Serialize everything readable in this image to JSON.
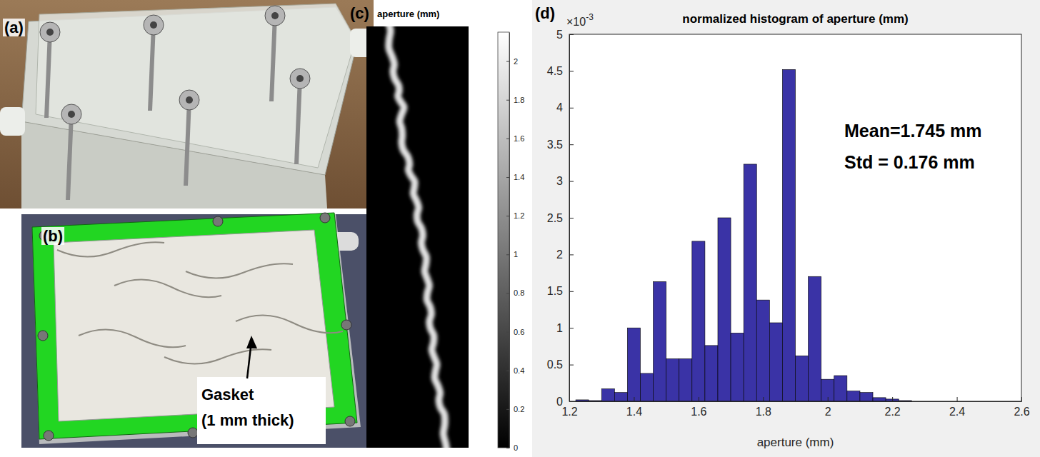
{
  "figure": {
    "panel_labels": [
      "(a)",
      "(b)",
      "(c)",
      "(d)"
    ],
    "panel_b": {
      "annotation_lines": [
        "Gasket",
        "(1 mm thick)"
      ]
    }
  },
  "chart_data": [
    {
      "type": "image",
      "title": "aperture (mm)",
      "colorbar_range": [
        0,
        2.15
      ],
      "colorbar_ticks": [
        0,
        0.2,
        0.4,
        0.6,
        0.8,
        1,
        1.2,
        1.4,
        1.6,
        1.8,
        2
      ]
    },
    {
      "type": "histogram",
      "title": "normalized histogram of aperture (mm)",
      "x_label": "aperture (mm)",
      "y_scale_base": "×10",
      "y_scale_power": "-3",
      "annotations": [
        "Mean=1.745 mm",
        "Std = 0.176 mm"
      ],
      "bins": [
        1.22,
        1.26,
        1.3,
        1.34,
        1.38,
        1.42,
        1.46,
        1.5,
        1.54,
        1.58,
        1.62,
        1.66,
        1.7,
        1.74,
        1.78,
        1.82,
        1.86,
        1.9,
        1.94,
        1.98,
        2.02,
        2.06,
        2.1,
        2.14,
        2.18,
        2.22,
        2.26
      ],
      "values": [
        0.02,
        0.01,
        0.17,
        0.12,
        1.0,
        0.38,
        1.63,
        0.58,
        0.58,
        2.18,
        0.76,
        2.5,
        0.93,
        3.23,
        1.38,
        1.07,
        4.52,
        0.62,
        1.7,
        0.3,
        0.35,
        0.14,
        0.12,
        0.05,
        0.03,
        0.01
      ],
      "color": "#3a33a6",
      "xlim": [
        1.2,
        2.6
      ],
      "ylim": [
        0,
        5
      ],
      "xticks": [
        1.2,
        1.4,
        1.6,
        1.8,
        2,
        2.2,
        2.4,
        2.6
      ],
      "yticks": [
        0,
        0.5,
        1,
        1.5,
        2,
        2.5,
        3,
        3.5,
        4,
        4.5,
        5
      ],
      "grid": false
    }
  ]
}
